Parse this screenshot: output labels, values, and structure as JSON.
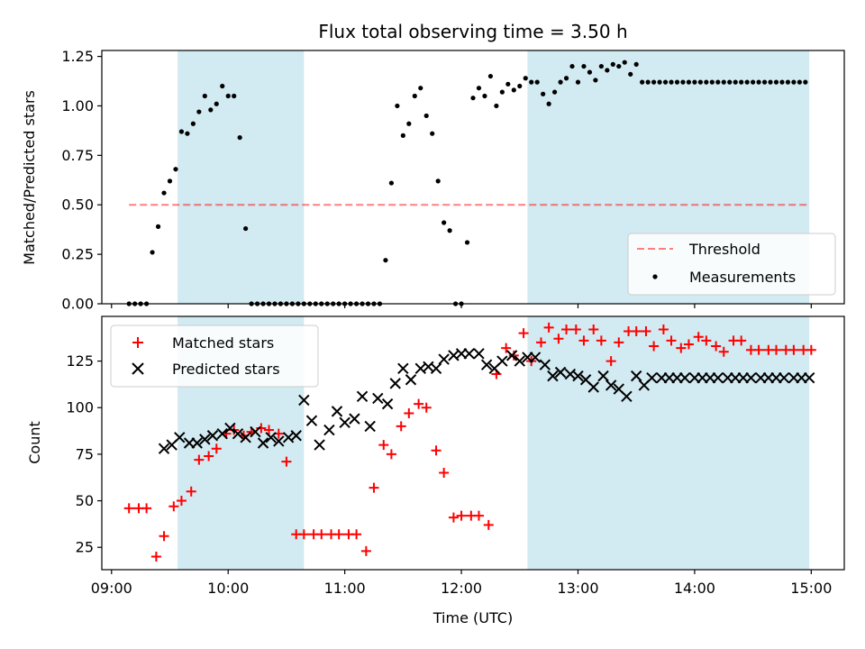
{
  "colors": {
    "band": "#add8e6",
    "threshold": "#ff0000",
    "measurement": "#000000",
    "matched": "#ff0000",
    "predicted": "#000000"
  },
  "chart_data": [
    {
      "type": "scatter",
      "title": "Flux total observing time = 3.50 h",
      "xlabel": "",
      "ylabel": "Matched/Predicted stars",
      "xlim": [
        "08:55",
        "15:17"
      ],
      "ylim": [
        0,
        1.28
      ],
      "yticks": [
        {
          "value": 0,
          "label": "0.00"
        },
        {
          "value": 0.25,
          "label": "0.25"
        },
        {
          "value": 0.5,
          "label": "0.50"
        },
        {
          "value": 0.75,
          "label": "0.75"
        },
        {
          "value": 1.0,
          "label": "1.00"
        },
        {
          "value": 1.25,
          "label": "1.25"
        }
      ],
      "shaded_intervals": [
        [
          "09:34",
          "10:39"
        ],
        [
          "12:34",
          "14:59"
        ]
      ],
      "legend": {
        "position": "lower right",
        "entries": [
          "Threshold",
          "Measurements"
        ]
      },
      "series": [
        {
          "name": "Threshold",
          "style": "dashed-line",
          "x": [
            "09:09",
            "14:59"
          ],
          "y": [
            0.5,
            0.5
          ]
        },
        {
          "name": "Measurements",
          "style": "dot",
          "x": [
            "09:09",
            "09:12",
            "09:15",
            "09:18",
            "09:21",
            "09:24",
            "09:27",
            "09:30",
            "09:33",
            "09:36",
            "09:39",
            "09:42",
            "09:45",
            "09:48",
            "09:51",
            "09:54",
            "09:57",
            "10:00",
            "10:03",
            "10:06",
            "10:09",
            "10:12",
            "10:15",
            "10:18",
            "10:21",
            "10:24",
            "10:27",
            "10:30",
            "10:33",
            "10:36",
            "10:39",
            "10:42",
            "10:45",
            "10:48",
            "10:51",
            "10:54",
            "10:57",
            "11:00",
            "11:03",
            "11:06",
            "11:09",
            "11:12",
            "11:15",
            "11:18",
            "11:21",
            "11:24",
            "11:27",
            "11:30",
            "11:33",
            "11:36",
            "11:39",
            "11:42",
            "11:45",
            "11:48",
            "11:51",
            "11:54",
            "11:57",
            "12:00",
            "12:03",
            "12:06",
            "12:09",
            "12:12",
            "12:15",
            "12:18",
            "12:21",
            "12:24",
            "12:27",
            "12:30",
            "12:33",
            "12:36",
            "12:39",
            "12:42",
            "12:45",
            "12:48",
            "12:51",
            "12:54",
            "12:57",
            "13:00",
            "13:03",
            "13:06",
            "13:09",
            "13:12",
            "13:15",
            "13:18",
            "13:21",
            "13:24",
            "13:27",
            "13:30",
            "13:33",
            "13:36",
            "13:39",
            "13:42",
            "13:45",
            "13:48",
            "13:51",
            "13:54",
            "13:57",
            "14:00",
            "14:03",
            "14:06",
            "14:09",
            "14:12",
            "14:15",
            "14:18",
            "14:21",
            "14:24",
            "14:27",
            "14:30",
            "14:33",
            "14:36",
            "14:39",
            "14:42",
            "14:45",
            "14:48",
            "14:51",
            "14:54",
            "14:57"
          ],
          "y": [
            0.0,
            0.0,
            0.0,
            0.0,
            0.26,
            0.39,
            0.56,
            0.62,
            0.68,
            0.87,
            0.86,
            0.91,
            0.97,
            1.05,
            0.98,
            1.01,
            1.1,
            1.05,
            1.05,
            0.84,
            0.38,
            0.0,
            0.0,
            0.0,
            0.0,
            0.0,
            0.0,
            0.0,
            0.0,
            0.0,
            0.0,
            0.0,
            0.0,
            0.0,
            0.0,
            0.0,
            0.0,
            0.0,
            0.0,
            0.0,
            0.0,
            0.0,
            0.0,
            0.0,
            0.22,
            0.61,
            1.0,
            0.85,
            0.91,
            1.05,
            1.09,
            0.95,
            0.86,
            0.62,
            0.41,
            0.37,
            0.0,
            0.0,
            0.31,
            1.04,
            1.09,
            1.05,
            1.15,
            1.0,
            1.07,
            1.11,
            1.08,
            1.1,
            1.14,
            1.12,
            1.12,
            1.06,
            1.01,
            1.07,
            1.12,
            1.14,
            1.2,
            1.12,
            1.2,
            1.17,
            1.13,
            1.2,
            1.18,
            1.21,
            1.2,
            1.22,
            1.16,
            1.21,
            1.12,
            1.12,
            1.12,
            1.12,
            1.12,
            1.12,
            1.12,
            1.12,
            1.12,
            1.12,
            1.12,
            1.12,
            1.12,
            1.12,
            1.12,
            1.12,
            1.12,
            1.12,
            1.12,
            1.12,
            1.12,
            1.12,
            1.12,
            1.12,
            1.12,
            1.12,
            1.12,
            1.12,
            1.12
          ]
        }
      ]
    },
    {
      "type": "scatter",
      "title": "",
      "xlabel": "Time (UTC)",
      "ylabel": "Count",
      "xlim": [
        "08:55",
        "15:17"
      ],
      "ylim": [
        13,
        149
      ],
      "yticks": [
        {
          "value": 25,
          "label": "25"
        },
        {
          "value": 50,
          "label": "50"
        },
        {
          "value": 75,
          "label": "75"
        },
        {
          "value": 100,
          "label": "100"
        },
        {
          "value": 125,
          "label": "125"
        }
      ],
      "xticks": [
        "09:00",
        "10:00",
        "11:00",
        "12:00",
        "13:00",
        "14:00",
        "15:00"
      ],
      "shaded_intervals": [
        [
          "09:34",
          "10:39"
        ],
        [
          "12:34",
          "14:59"
        ]
      ],
      "legend": {
        "position": "upper left",
        "entries": [
          "Matched stars",
          "Predicted stars"
        ]
      },
      "series": [
        {
          "name": "Matched stars",
          "style": "plus",
          "x": [
            "09:09",
            "09:14",
            "09:18",
            "09:23",
            "09:27",
            "09:32",
            "09:36",
            "09:41",
            "09:45",
            "09:50",
            "09:54",
            "09:59",
            "10:03",
            "10:08",
            "10:12",
            "10:17",
            "10:21",
            "10:26",
            "10:30",
            "10:35",
            "10:39",
            "10:44",
            "10:48",
            "10:53",
            "10:57",
            "11:02",
            "11:06",
            "11:11",
            "11:15",
            "11:20",
            "11:24",
            "11:29",
            "11:33",
            "11:38",
            "11:42",
            "11:47",
            "11:51",
            "11:56",
            "12:00",
            "12:05",
            "12:09",
            "12:14",
            "12:18",
            "12:23",
            "12:27",
            "12:32",
            "12:36",
            "12:41",
            "12:45",
            "12:50",
            "12:54",
            "12:59",
            "13:03",
            "13:08",
            "13:12",
            "13:17",
            "13:21",
            "13:26",
            "13:30",
            "13:35",
            "13:39",
            "13:44",
            "13:48",
            "13:53",
            "13:57",
            "14:02",
            "14:06",
            "14:11",
            "14:15",
            "14:20",
            "14:24",
            "14:29",
            "14:33",
            "14:38",
            "14:42",
            "14:47",
            "14:51",
            "14:56",
            "15:00"
          ],
          "y": [
            46,
            46,
            46,
            20,
            31,
            47,
            50,
            55,
            72,
            74,
            78,
            86,
            88,
            85,
            87,
            89,
            88,
            86,
            71,
            32,
            32,
            32,
            32,
            32,
            32,
            32,
            32,
            23,
            57,
            80,
            75,
            90,
            97,
            102,
            100,
            77,
            65,
            41,
            42,
            42,
            42,
            37,
            118,
            132,
            128,
            140,
            125,
            135,
            143,
            137,
            142,
            142,
            136,
            142,
            136,
            125,
            135,
            141,
            141,
            141,
            133,
            142,
            136,
            132,
            134,
            138,
            136,
            133,
            130,
            136,
            136,
            131,
            131,
            131,
            131,
            131,
            131,
            131,
            131
          ]
        },
        {
          "name": "Predicted stars",
          "style": "x",
          "x": [
            "09:27",
            "09:31",
            "09:35",
            "09:40",
            "09:44",
            "09:48",
            "09:52",
            "09:57",
            "10:01",
            "10:05",
            "10:09",
            "10:14",
            "10:18",
            "10:22",
            "10:26",
            "10:31",
            "10:35",
            "10:39",
            "10:43",
            "10:47",
            "10:52",
            "10:56",
            "11:00",
            "11:05",
            "11:09",
            "11:13",
            "11:17",
            "11:22",
            "11:26",
            "11:30",
            "11:34",
            "11:39",
            "11:43",
            "11:47",
            "11:51",
            "11:56",
            "12:00",
            "12:04",
            "12:09",
            "12:13",
            "12:17",
            "12:21",
            "12:26",
            "12:30",
            "12:34",
            "12:38",
            "12:43",
            "12:47",
            "12:51",
            "12:56",
            "13:00",
            "13:04",
            "13:08",
            "13:13",
            "13:17",
            "13:21",
            "13:25",
            "13:30",
            "13:34",
            "13:38",
            "13:43",
            "13:47",
            "13:51",
            "13:55",
            "14:00",
            "14:04",
            "14:08",
            "14:12",
            "14:17",
            "14:21",
            "14:25",
            "14:29",
            "14:34",
            "14:38",
            "14:42",
            "14:46",
            "14:51",
            "14:55",
            "14:59"
          ],
          "y": [
            78,
            80,
            84,
            81,
            81,
            83,
            85,
            86,
            89,
            86,
            84,
            87,
            81,
            84,
            82,
            84,
            85,
            104,
            93,
            80,
            88,
            98,
            92,
            94,
            106,
            90,
            105,
            102,
            113,
            121,
            115,
            121,
            122,
            121,
            126,
            128,
            129,
            129,
            129,
            123,
            121,
            125,
            128,
            125,
            127,
            127,
            123,
            117,
            119,
            118,
            117,
            115,
            111,
            117,
            112,
            110,
            106,
            117,
            112,
            116,
            116,
            116,
            116,
            116,
            116,
            116,
            116,
            116,
            116,
            116,
            116,
            116,
            116,
            116,
            116,
            116,
            116,
            116,
            116
          ]
        }
      ]
    }
  ]
}
